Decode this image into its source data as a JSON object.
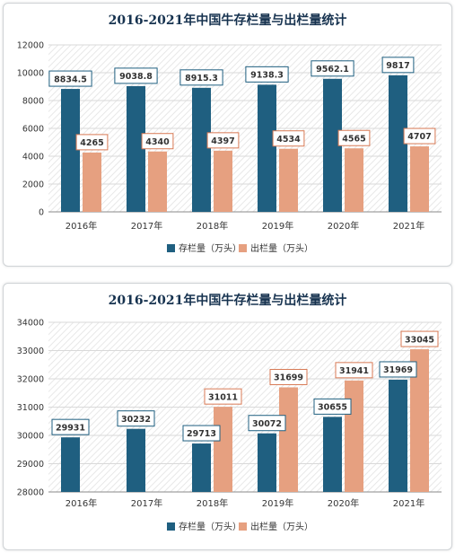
{
  "colors": {
    "stock": "#1f5f80",
    "output": "#e6a080",
    "stock_label_border": "#1f5f80",
    "output_label_border": "#d87a55",
    "grid": "#d9d9d9"
  },
  "chart_data": [
    {
      "type": "bar",
      "title": "2016-2021年中国牛存栏量与出栏量统计",
      "categories": [
        "2016年",
        "2017年",
        "2018年",
        "2019年",
        "2020年",
        "2021年"
      ],
      "series": [
        {
          "name": "存栏量（万头）",
          "values": [
            8834.5,
            9038.8,
            8915.3,
            9138.3,
            9562.1,
            9817
          ],
          "labels": [
            "8834.5",
            "9038.8",
            "8915.3",
            "9138.3",
            "9562.1",
            "9817"
          ]
        },
        {
          "name": "出栏量（万头）",
          "values": [
            4265,
            4340,
            4397,
            4534,
            4565,
            4707
          ],
          "labels": [
            "4265",
            "4340",
            "4397",
            "4534",
            "4565",
            "4707"
          ]
        }
      ],
      "ylim": [
        0,
        12000
      ],
      "yticks": [
        0,
        2000,
        4000,
        6000,
        8000,
        10000,
        12000
      ],
      "grid": true,
      "legend": "bottom"
    },
    {
      "type": "bar",
      "title": "2016-2021年中国牛存栏量与出栏量统计",
      "categories": [
        "2016年",
        "2017年",
        "2018年",
        "2019年",
        "2020年",
        "2021年"
      ],
      "series": [
        {
          "name": "存栏量（万头）",
          "values": [
            29931,
            30232,
            29713,
            30072,
            30655,
            31969
          ],
          "labels": [
            "29931",
            "30232",
            "29713",
            "30072",
            "30655",
            "31969"
          ]
        },
        {
          "name": "出栏量（万头）",
          "values": [
            null,
            null,
            31011,
            31699,
            31941,
            33045
          ],
          "labels": [
            null,
            null,
            "31011",
            "31699",
            "31941",
            "33045"
          ]
        }
      ],
      "ylim": [
        28000,
        34000
      ],
      "yticks": [
        28000,
        29000,
        30000,
        31000,
        32000,
        33000,
        34000
      ],
      "grid": true,
      "legend": "bottom"
    }
  ]
}
